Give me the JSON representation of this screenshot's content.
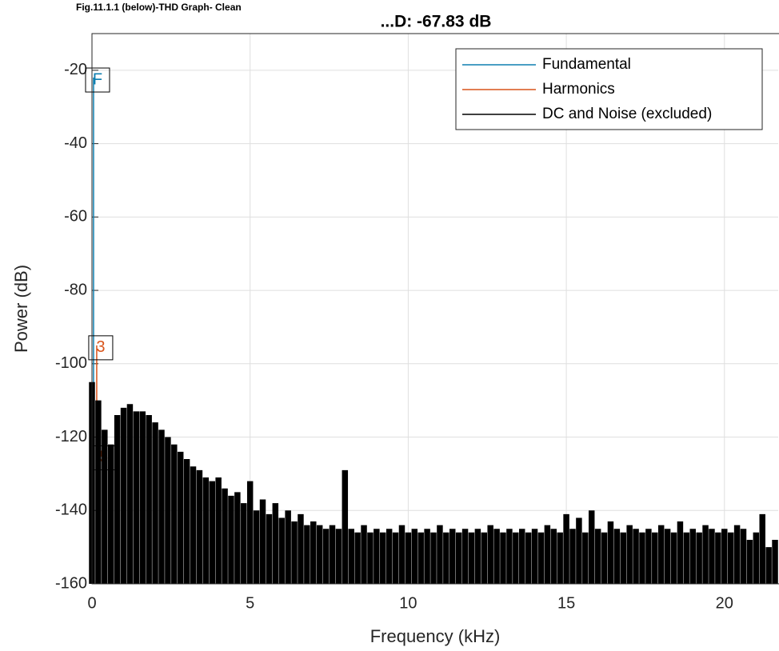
{
  "caption": "Fig.11.1.1 (below)-THD Graph- Clean",
  "chart_data": {
    "type": "stem",
    "title": "...D: -67.83 dB",
    "xlabel": "Frequency (kHz)",
    "ylabel": "Power (dB)",
    "xlim": [
      0,
      21.7
    ],
    "ylim": [
      -160,
      -10
    ],
    "xticks": [
      0,
      5,
      10,
      15,
      20
    ],
    "yticks": [
      -160,
      -140,
      -120,
      -100,
      -80,
      -60,
      -40,
      -20
    ],
    "grid": true,
    "legend": "northeast",
    "series": [
      {
        "name": "Fundamental",
        "color": "#0f7fb0",
        "x": [
          0.05
        ],
        "values": [
          -22
        ],
        "labels": [
          "F"
        ]
      },
      {
        "name": "Harmonics",
        "color": "#d9541a",
        "x": [
          0.15,
          0.25
        ],
        "values": [
          -95,
          -125
        ],
        "labels": [
          "3",
          "5"
        ]
      },
      {
        "name": "DC and Noise (excluded)",
        "color": "#000000",
        "x": [
          0,
          0.2,
          0.4,
          0.6,
          0.8,
          1,
          1.2,
          1.4,
          1.6,
          1.8,
          2,
          2.2,
          2.4,
          2.6,
          2.8,
          3,
          3.2,
          3.4,
          3.6,
          3.8,
          4,
          4.2,
          4.4,
          4.6,
          4.8,
          5,
          5.2,
          5.4,
          5.6,
          5.8,
          6,
          6.2,
          6.4,
          6.6,
          6.8,
          7,
          7.2,
          7.4,
          7.6,
          7.8,
          8,
          8.2,
          8.4,
          8.6,
          8.8,
          9,
          9.2,
          9.4,
          9.6,
          9.8,
          10,
          10.2,
          10.4,
          10.6,
          10.8,
          11,
          11.2,
          11.4,
          11.6,
          11.8,
          12,
          12.2,
          12.4,
          12.6,
          12.8,
          13,
          13.2,
          13.4,
          13.6,
          13.8,
          14,
          14.2,
          14.4,
          14.6,
          14.8,
          15,
          15.2,
          15.4,
          15.6,
          15.8,
          16,
          16.2,
          16.4,
          16.6,
          16.8,
          17,
          17.2,
          17.4,
          17.6,
          17.8,
          18,
          18.2,
          18.4,
          18.6,
          18.8,
          19,
          19.2,
          19.4,
          19.6,
          19.8,
          20,
          20.2,
          20.4,
          20.6,
          20.8,
          21,
          21.2,
          21.4,
          21.6
        ],
        "values": [
          -105,
          -110,
          -118,
          -122,
          -114,
          -112,
          -111,
          -113,
          -113,
          -114,
          -116,
          -118,
          -120,
          -122,
          -124,
          -126,
          -128,
          -129,
          -131,
          -132,
          -131,
          -134,
          -136,
          -135,
          -138,
          -132,
          -140,
          -137,
          -141,
          -138,
          -142,
          -140,
          -143,
          -141,
          -144,
          -143,
          -144,
          -145,
          -144,
          -145,
          -129,
          -145,
          -146,
          -144,
          -146,
          -145,
          -146,
          -145,
          -146,
          -144,
          -146,
          -145,
          -146,
          -145,
          -146,
          -144,
          -146,
          -145,
          -146,
          -145,
          -146,
          -145,
          -146,
          -144,
          -145,
          -146,
          -145,
          -146,
          -145,
          -146,
          -145,
          -146,
          -144,
          -145,
          -146,
          -141,
          -145,
          -142,
          -146,
          -140,
          -145,
          -146,
          -143,
          -145,
          -146,
          -144,
          -145,
          -146,
          -145,
          -146,
          -144,
          -145,
          -146,
          -143,
          -146,
          -145,
          -146,
          -144,
          -145,
          -146,
          -145,
          -146,
          -144,
          -145,
          -148,
          -146,
          -141,
          -150,
          -148
        ]
      }
    ]
  }
}
